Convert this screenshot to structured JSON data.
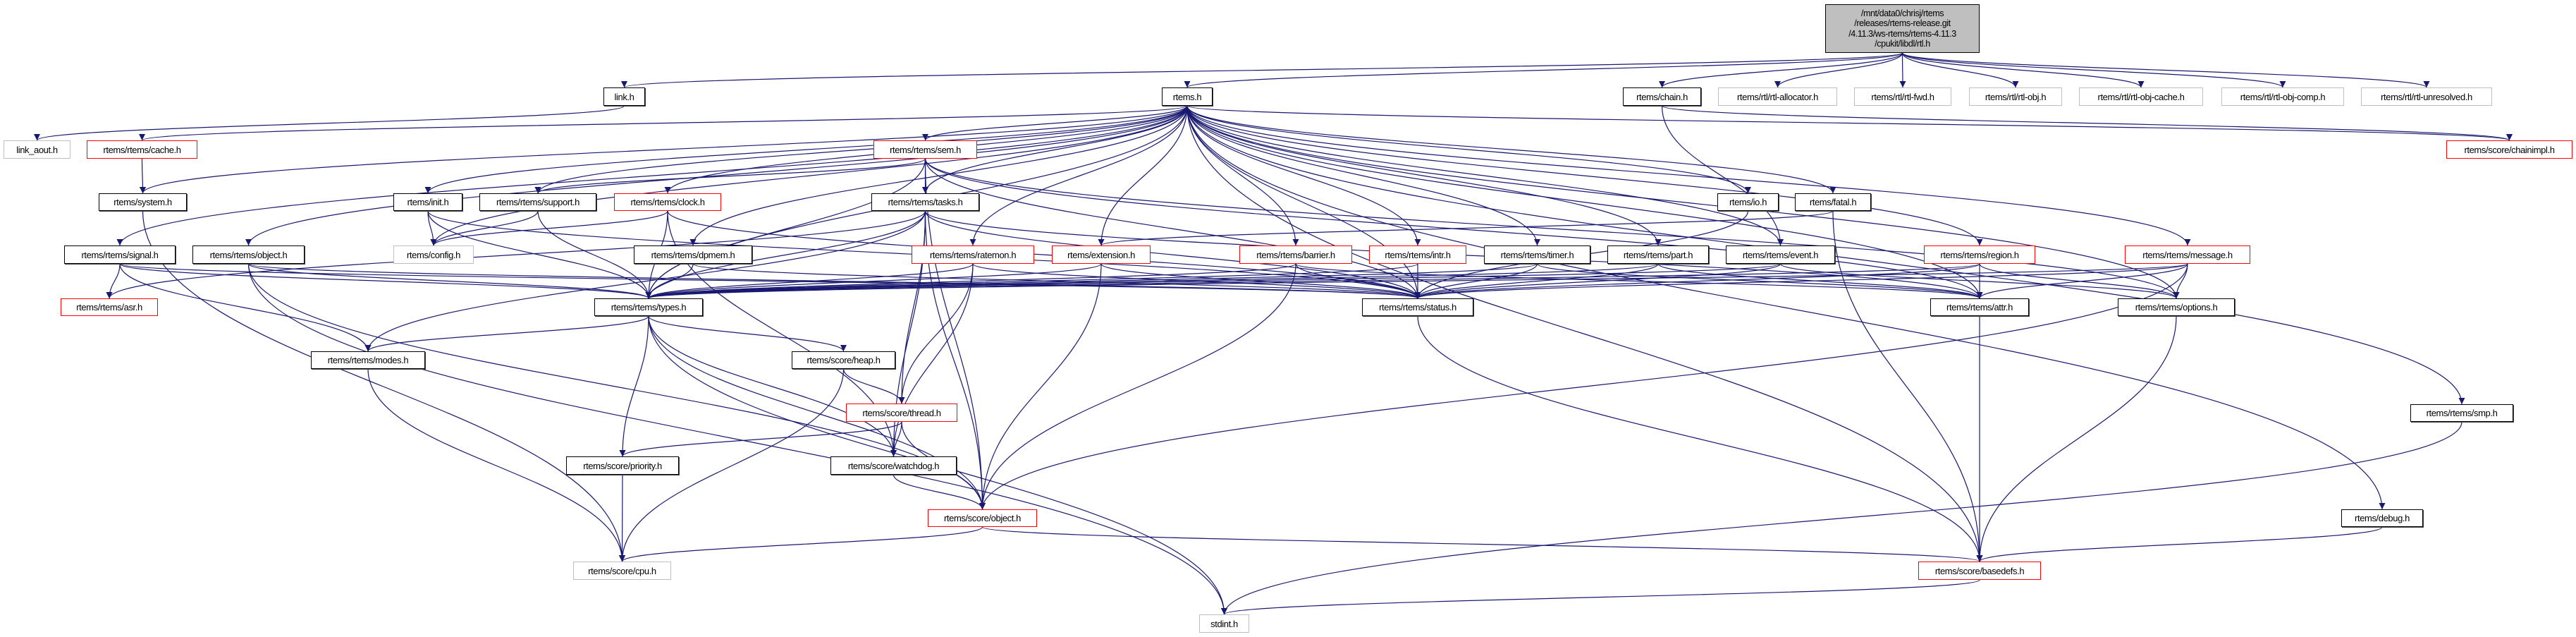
{
  "colors": {
    "edge": "#191970",
    "documented_border": "#000000",
    "truncated_border": "#ff0000",
    "undocumented_border": "#bfbfbf",
    "root_fill": "#bfbfbf"
  },
  "nodes": {
    "rtl": {
      "label": "/mnt/data0/chrisj/rtems\n/releases/rtems-release.git\n/4.11.3/ws-rtems/rtems-4.11.3\n/cpukit/libdl/rtl.h",
      "kind": "root"
    },
    "link": {
      "label": "link.h",
      "kind": "documented"
    },
    "rtems": {
      "label": "rtems.h",
      "kind": "documented"
    },
    "chain": {
      "label": "rtems/chain.h",
      "kind": "documented"
    },
    "alloc": {
      "label": "rtems/rtl/rtl-allocator.h",
      "kind": "undocumented"
    },
    "fwd": {
      "label": "rtems/rtl/rtl-fwd.h",
      "kind": "undocumented"
    },
    "obj": {
      "label": "rtems/rtl/rtl-obj.h",
      "kind": "undocumented"
    },
    "objcache": {
      "label": "rtems/rtl/rtl-obj-cache.h",
      "kind": "undocumented"
    },
    "objcomp": {
      "label": "rtems/rtl/rtl-obj-comp.h",
      "kind": "undocumented"
    },
    "unres": {
      "label": "rtems/rtl/rtl-unresolved.h",
      "kind": "undocumented"
    },
    "linkaout": {
      "label": "link_aout.h",
      "kind": "undocumented"
    },
    "cache": {
      "label": "rtems/rtems/cache.h",
      "kind": "truncated"
    },
    "sem": {
      "label": "rtems/rtems/sem.h",
      "kind": "truncated"
    },
    "chainimpl": {
      "label": "rtems/score/chainimpl.h",
      "kind": "truncated"
    },
    "system": {
      "label": "rtems/system.h",
      "kind": "documented"
    },
    "init": {
      "label": "rtems/init.h",
      "kind": "documented"
    },
    "support": {
      "label": "rtems/rtems/support.h",
      "kind": "documented"
    },
    "clock": {
      "label": "rtems/rtems/clock.h",
      "kind": "truncated"
    },
    "tasks": {
      "label": "rtems/rtems/tasks.h",
      "kind": "documented"
    },
    "io": {
      "label": "rtems/io.h",
      "kind": "documented"
    },
    "fatal": {
      "label": "rtems/fatal.h",
      "kind": "documented"
    },
    "signal": {
      "label": "rtems/rtems/signal.h",
      "kind": "documented"
    },
    "robject": {
      "label": "rtems/rtems/object.h",
      "kind": "documented"
    },
    "config": {
      "label": "rtems/config.h",
      "kind": "undocumented"
    },
    "dpmem": {
      "label": "rtems/rtems/dpmem.h",
      "kind": "documented"
    },
    "ratemon": {
      "label": "rtems/rtems/ratemon.h",
      "kind": "truncated"
    },
    "extension": {
      "label": "rtems/extension.h",
      "kind": "truncated"
    },
    "barrier": {
      "label": "rtems/rtems/barrier.h",
      "kind": "truncated"
    },
    "intr": {
      "label": "rtems/rtems/intr.h",
      "kind": "truncated"
    },
    "timer": {
      "label": "rtems/rtems/timer.h",
      "kind": "documented"
    },
    "part": {
      "label": "rtems/rtems/part.h",
      "kind": "documented"
    },
    "event": {
      "label": "rtems/rtems/event.h",
      "kind": "documented"
    },
    "region": {
      "label": "rtems/rtems/region.h",
      "kind": "truncated"
    },
    "message": {
      "label": "rtems/rtems/message.h",
      "kind": "truncated"
    },
    "asr": {
      "label": "rtems/rtems/asr.h",
      "kind": "truncated"
    },
    "types": {
      "label": "rtems/rtems/types.h",
      "kind": "documented"
    },
    "status": {
      "label": "rtems/rtems/status.h",
      "kind": "documented"
    },
    "attr": {
      "label": "rtems/rtems/attr.h",
      "kind": "documented"
    },
    "options": {
      "label": "rtems/rtems/options.h",
      "kind": "documented"
    },
    "modes": {
      "label": "rtems/rtems/modes.h",
      "kind": "documented"
    },
    "heap": {
      "label": "rtems/score/heap.h",
      "kind": "documented"
    },
    "thread": {
      "label": "rtems/score/thread.h",
      "kind": "truncated"
    },
    "priority": {
      "label": "rtems/score/priority.h",
      "kind": "documented"
    },
    "watchdog": {
      "label": "rtems/score/watchdog.h",
      "kind": "documented"
    },
    "sobject": {
      "label": "rtems/score/object.h",
      "kind": "truncated"
    },
    "smp": {
      "label": "rtems/rtems/smp.h",
      "kind": "documented"
    },
    "debug": {
      "label": "rtems/debug.h",
      "kind": "documented"
    },
    "cpu": {
      "label": "rtems/score/cpu.h",
      "kind": "undocumented"
    },
    "basedefs": {
      "label": "rtems/score/basedefs.h",
      "kind": "truncated"
    },
    "stdint": {
      "label": "stdint.h",
      "kind": "undocumented"
    }
  },
  "edges": [
    [
      "rtl",
      "link"
    ],
    [
      "rtl",
      "rtems"
    ],
    [
      "rtl",
      "chain"
    ],
    [
      "rtl",
      "alloc"
    ],
    [
      "rtl",
      "fwd"
    ],
    [
      "rtl",
      "obj"
    ],
    [
      "rtl",
      "objcache"
    ],
    [
      "rtl",
      "objcomp"
    ],
    [
      "rtl",
      "unres"
    ],
    [
      "link",
      "linkaout"
    ],
    [
      "rtems",
      "cache"
    ],
    [
      "rtems",
      "system"
    ],
    [
      "rtems",
      "init"
    ],
    [
      "rtems",
      "support"
    ],
    [
      "rtems",
      "clock"
    ],
    [
      "rtems",
      "signal"
    ],
    [
      "rtems",
      "robject"
    ],
    [
      "rtems",
      "config"
    ],
    [
      "rtems",
      "dpmem"
    ],
    [
      "rtems",
      "types"
    ],
    [
      "rtems",
      "sem"
    ],
    [
      "rtems",
      "tasks"
    ],
    [
      "rtems",
      "ratemon"
    ],
    [
      "rtems",
      "extension"
    ],
    [
      "rtems",
      "barrier"
    ],
    [
      "rtems",
      "intr"
    ],
    [
      "rtems",
      "timer"
    ],
    [
      "rtems",
      "part"
    ],
    [
      "rtems",
      "status"
    ],
    [
      "rtems",
      "io"
    ],
    [
      "rtems",
      "fatal"
    ],
    [
      "rtems",
      "event"
    ],
    [
      "rtems",
      "region"
    ],
    [
      "rtems",
      "message"
    ],
    [
      "rtems",
      "attr"
    ],
    [
      "rtems",
      "options"
    ],
    [
      "rtems",
      "chainimpl"
    ],
    [
      "rtems",
      "debug"
    ],
    [
      "rtems",
      "smp"
    ],
    [
      "rtems",
      "basedefs"
    ],
    [
      "chain",
      "event"
    ],
    [
      "chain",
      "chainimpl"
    ],
    [
      "cache",
      "system"
    ],
    [
      "system",
      "cpu"
    ],
    [
      "init",
      "config"
    ],
    [
      "init",
      "types"
    ],
    [
      "init",
      "status"
    ],
    [
      "support",
      "config"
    ],
    [
      "support",
      "types"
    ],
    [
      "clock",
      "config"
    ],
    [
      "clock",
      "types"
    ],
    [
      "clock",
      "status"
    ],
    [
      "clock",
      "watchdog"
    ],
    [
      "signal",
      "asr"
    ],
    [
      "signal",
      "modes"
    ],
    [
      "signal",
      "types"
    ],
    [
      "signal",
      "status"
    ],
    [
      "robject",
      "types"
    ],
    [
      "robject",
      "status"
    ],
    [
      "robject",
      "sobject"
    ],
    [
      "robject",
      "stdint"
    ],
    [
      "dpmem",
      "types"
    ],
    [
      "dpmem",
      "status"
    ],
    [
      "sem",
      "tasks"
    ],
    [
      "sem",
      "support"
    ],
    [
      "sem",
      "types"
    ],
    [
      "sem",
      "status"
    ],
    [
      "sem",
      "attr"
    ],
    [
      "sem",
      "options"
    ],
    [
      "sem",
      "sobject"
    ],
    [
      "tasks",
      "types"
    ],
    [
      "tasks",
      "status"
    ],
    [
      "tasks",
      "attr"
    ],
    [
      "tasks",
      "modes"
    ],
    [
      "tasks",
      "thread"
    ],
    [
      "tasks",
      "sobject"
    ],
    [
      "tasks",
      "watchdog"
    ],
    [
      "tasks",
      "asr"
    ],
    [
      "types",
      "modes"
    ],
    [
      "types",
      "heap"
    ],
    [
      "types",
      "priority"
    ],
    [
      "types",
      "sobject"
    ],
    [
      "types",
      "watchdog"
    ],
    [
      "types",
      "stdint"
    ],
    [
      "modes",
      "cpu"
    ],
    [
      "heap",
      "thread"
    ],
    [
      "heap",
      "cpu"
    ],
    [
      "thread",
      "priority"
    ],
    [
      "thread",
      "watchdog"
    ],
    [
      "thread",
      "sobject"
    ],
    [
      "priority",
      "cpu"
    ],
    [
      "watchdog",
      "sobject"
    ],
    [
      "sobject",
      "cpu"
    ],
    [
      "sobject",
      "basedefs"
    ],
    [
      "ratemon",
      "types"
    ],
    [
      "ratemon",
      "status"
    ],
    [
      "ratemon",
      "thread"
    ],
    [
      "ratemon",
      "watchdog"
    ],
    [
      "extension",
      "types"
    ],
    [
      "extension",
      "status"
    ],
    [
      "extension",
      "sobject"
    ],
    [
      "barrier",
      "types"
    ],
    [
      "barrier",
      "status"
    ],
    [
      "barrier",
      "attr"
    ],
    [
      "barrier",
      "sobject"
    ],
    [
      "intr",
      "types"
    ],
    [
      "intr",
      "status"
    ],
    [
      "timer",
      "types"
    ],
    [
      "timer",
      "status"
    ],
    [
      "timer",
      "attr"
    ],
    [
      "part",
      "types"
    ],
    [
      "part",
      "status"
    ],
    [
      "part",
      "attr"
    ],
    [
      "event",
      "types"
    ],
    [
      "event",
      "status"
    ],
    [
      "event",
      "options"
    ],
    [
      "io",
      "status"
    ],
    [
      "fatal",
      "extension"
    ],
    [
      "fatal",
      "basedefs"
    ],
    [
      "region",
      "types"
    ],
    [
      "region",
      "status"
    ],
    [
      "region",
      "attr"
    ],
    [
      "region",
      "options"
    ],
    [
      "message",
      "types"
    ],
    [
      "message",
      "status"
    ],
    [
      "message",
      "attr"
    ],
    [
      "message",
      "options"
    ],
    [
      "message",
      "sobject"
    ],
    [
      "status",
      "basedefs"
    ],
    [
      "attr",
      "basedefs"
    ],
    [
      "options",
      "basedefs"
    ],
    [
      "debug",
      "basedefs"
    ],
    [
      "smp",
      "stdint"
    ],
    [
      "basedefs",
      "stdint"
    ]
  ]
}
